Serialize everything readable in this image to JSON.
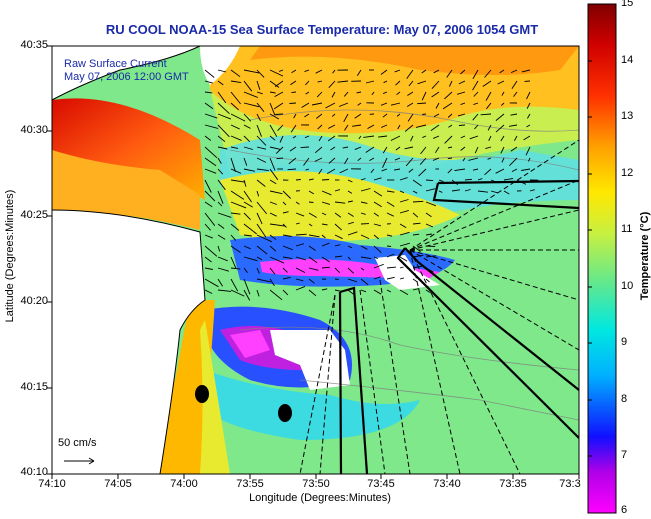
{
  "title": "RU COOL  NOAA-15  Sea Surface Temperature:  May 07, 2006 1054 GMT",
  "legend": {
    "line1": "Raw Surface Current",
    "line2": "May 07, 2006 12:00 GMT"
  },
  "scale_label": "50 cm/s",
  "colorbar": {
    "label": "Temperature (°C)",
    "ticks": [
      "15",
      "14",
      "13",
      "12",
      "11",
      "10",
      "9",
      "8",
      "7",
      "6"
    ]
  },
  "chart_data": {
    "type": "heatmap",
    "xlabel": "Longitude (Degrees:Minutes)",
    "ylabel": "Latitude (Degrees:Minutes)",
    "x_ticks": [
      "74:10",
      "74:05",
      "74:00",
      "73:55",
      "73:50",
      "73:45",
      "73:40",
      "73:35",
      "73:3"
    ],
    "y_ticks": [
      "40:35",
      "40:30",
      "40:25",
      "40:20",
      "40:15",
      "40:10"
    ],
    "colorbar_range": [
      6,
      15
    ]
  },
  "colors": {
    "title": "#1a2aa8",
    "land": "#ffffff"
  }
}
